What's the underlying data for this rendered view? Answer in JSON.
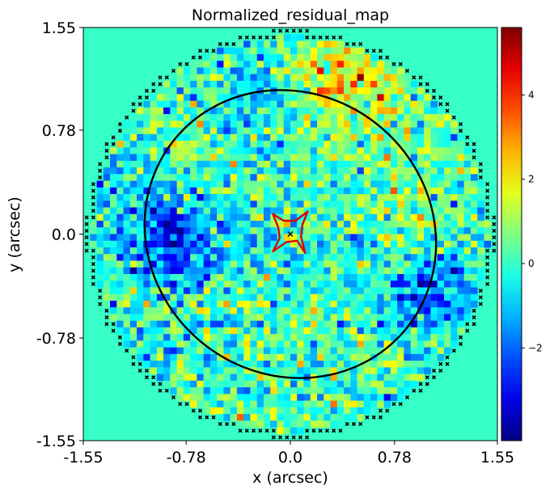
{
  "chart_data": {
    "type": "heatmap",
    "title": "Normalized_residual_map",
    "xlabel": "x (arcsec)",
    "ylabel": "y (arcsec)",
    "xlim": [
      -1.55,
      1.55
    ],
    "ylim": [
      -1.55,
      1.55
    ],
    "xticks": [
      {
        "value": -1.55,
        "label": "-1.55"
      },
      {
        "value": -0.78,
        "label": "-0.78"
      },
      {
        "value": 0.0,
        "label": "0.0"
      },
      {
        "value": 0.78,
        "label": "0.78"
      },
      {
        "value": 1.55,
        "label": "1.55"
      }
    ],
    "yticks": [
      {
        "value": -1.55,
        "label": "-1.55"
      },
      {
        "value": -0.78,
        "label": "-0.78"
      },
      {
        "value": 0.0,
        "label": "0.0"
      },
      {
        "value": 0.78,
        "label": "0.78"
      },
      {
        "value": 1.55,
        "label": "1.55"
      }
    ],
    "grid": false,
    "colormap": "jet",
    "background_value": 0,
    "grid_cells": 62,
    "mask_radius_arcsec": 1.48,
    "colorbar": {
      "range": [
        -4.2,
        5.6
      ],
      "ticks": [
        {
          "value": -2,
          "label": "−2"
        },
        {
          "value": 0,
          "label": "0"
        },
        {
          "value": 2,
          "label": "2"
        },
        {
          "value": 4,
          "label": "4"
        }
      ]
    },
    "residual_regions": [
      {
        "x": -0.92,
        "y": 0.05,
        "sigma": 0.28,
        "amplitude": -1.9
      },
      {
        "x": -0.85,
        "y": -0.15,
        "sigma": 0.2,
        "amplitude": -1.2
      },
      {
        "x": 0.55,
        "y": 1.05,
        "sigma": 0.32,
        "amplitude": 1.5
      },
      {
        "x": 0.3,
        "y": 1.2,
        "sigma": 0.18,
        "amplitude": 1.2
      },
      {
        "x": 1.05,
        "y": 0.2,
        "sigma": 0.22,
        "amplitude": 1.0
      },
      {
        "x": 1.15,
        "y": -0.35,
        "sigma": 0.2,
        "amplitude": -1.6
      },
      {
        "x": 0.9,
        "y": -0.55,
        "sigma": 0.18,
        "amplitude": -1.2
      },
      {
        "x": -0.3,
        "y": 1.05,
        "sigma": 0.2,
        "amplitude": -0.9
      },
      {
        "x": -0.7,
        "y": 0.6,
        "sigma": 0.2,
        "amplitude": 0.7
      },
      {
        "x": 0.6,
        "y": -0.9,
        "sigma": 0.15,
        "amplitude": 0.8
      }
    ],
    "peak_pixel": {
      "x": 0.53,
      "y": 1.18,
      "value": 5.5
    },
    "critical_curve": {
      "center": [
        0.0,
        0.0
      ],
      "semi_major": 1.12,
      "semi_minor": 1.05,
      "angle_deg": -40,
      "color": "#000000"
    },
    "caustic": {
      "color": "#dd0000",
      "points": [
        [
          0.13,
          0.17
        ],
        [
          0.04,
          0.1
        ],
        [
          -0.05,
          0.1
        ],
        [
          -0.13,
          0.15
        ],
        [
          -0.09,
          0.05
        ],
        [
          -0.08,
          -0.03
        ],
        [
          -0.13,
          -0.13
        ],
        [
          -0.03,
          -0.06
        ],
        [
          0.05,
          -0.05
        ],
        [
          0.11,
          -0.14
        ],
        [
          0.08,
          -0.02
        ],
        [
          0.09,
          0.07
        ]
      ]
    },
    "source_center": [
      0.0,
      0.0
    ],
    "masked_pixel_marker": "x"
  }
}
